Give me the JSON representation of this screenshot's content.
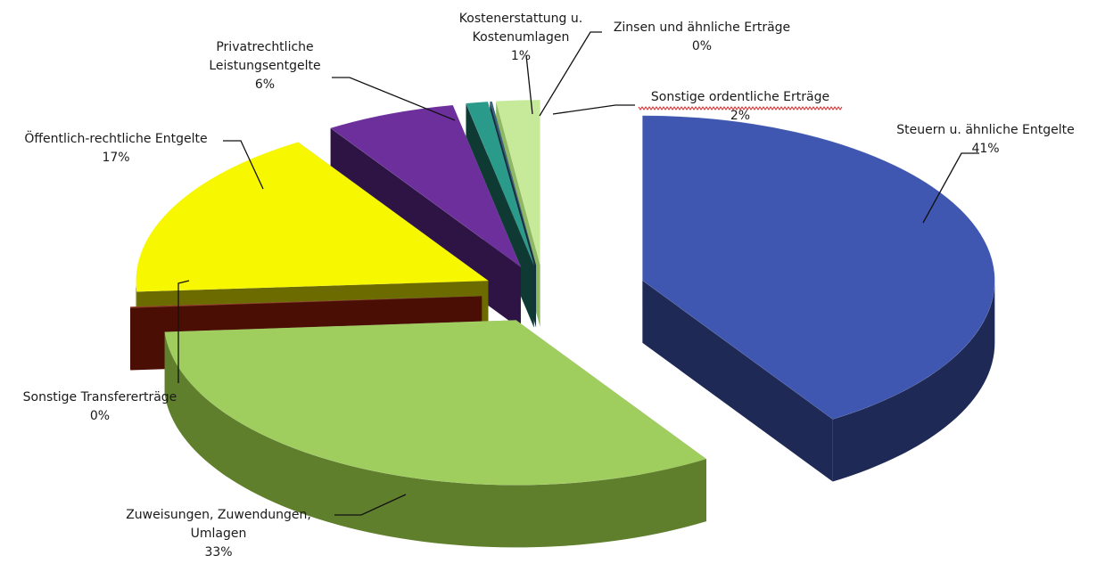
{
  "chart_data": {
    "type": "pie",
    "title": "",
    "categories": [
      "Steuern u. ähnliche Entgelte",
      "Zuweisungen, Zuwendungen, Umlagen",
      "Sonstige Transfererträge",
      "Öffentlich-rechtliche Entgelte",
      "Privatrechtliche Leistungsentgelte",
      "Kostenerstattung u. Kostenumlagen",
      "Zinsen und ähnliche Erträge",
      "Sonstige ordentliche Erträge"
    ],
    "values": [
      41,
      33,
      0,
      17,
      6,
      1,
      0,
      2
    ],
    "labels": [
      {
        "lines": [
          "Steuern u. ähnliche Entgelte"
        ],
        "pct": "41%"
      },
      {
        "lines": [
          "Zuweisungen, Zuwendungen,",
          "Umlagen"
        ],
        "pct": "33%"
      },
      {
        "lines": [
          "Sonstige Transfererträge"
        ],
        "pct": "0%"
      },
      {
        "lines": [
          "Öffentlich-rechtliche Entgelte"
        ],
        "pct": "17%"
      },
      {
        "lines": [
          "Privatrechtliche",
          "Leistungsentgelte"
        ],
        "pct": "6%"
      },
      {
        "lines": [
          "Kostenerstattung u.",
          "Kostenumlagen"
        ],
        "pct": "1%"
      },
      {
        "lines": [
          "Zinsen und ähnliche Erträge"
        ],
        "pct": "0%"
      },
      {
        "lines": [
          "Sonstige ordentliche Erträge"
        ],
        "pct": "2%"
      }
    ],
    "colors": [
      "#3f57b0",
      "#9fcd5e",
      "#8b2a10",
      "#f7f700",
      "#6c2f9c",
      "#2a9a8a",
      "#355f7c",
      "#c6e99a"
    ],
    "side_colors": [
      "#1e2a55",
      "#5f7f2c",
      "#4a0e04",
      "#6b6b00",
      "#2d1444",
      "#0f3a33",
      "#16303f",
      "#8fb862"
    ],
    "style": "3d-exploded",
    "legend": "none"
  }
}
